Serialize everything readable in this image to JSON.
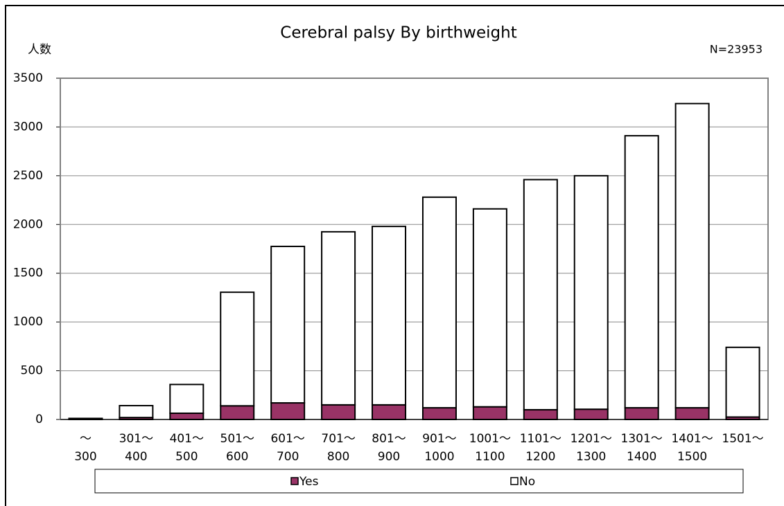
{
  "chart_data": {
    "type": "stacked_bar",
    "title": "Cerebral palsy By birthweight",
    "y_label": "人数",
    "annotation": "N=23953",
    "categories": [
      "～300",
      "301～400",
      "401～500",
      "501～600",
      "601～700",
      "701～800",
      "801～900",
      "901～1000",
      "1001～1100",
      "1101～1200",
      "1201～1300",
      "1301～1400",
      "1401～1500",
      "1501～"
    ],
    "series": [
      {
        "name": "Yes",
        "color": "#993366",
        "values": [
          3,
          20,
          64,
          140,
          170,
          150,
          150,
          120,
          130,
          100,
          105,
          120,
          120,
          25
        ]
      },
      {
        "name": "No",
        "color": "#ffffff",
        "values": [
          8,
          122,
          295,
          1165,
          1605,
          1775,
          1830,
          2160,
          2030,
          2360,
          2395,
          2790,
          3120,
          715
        ]
      }
    ],
    "ylim": [
      0,
      3500
    ],
    "yticks": [
      0,
      500,
      1000,
      1500,
      2000,
      2500,
      3000,
      3500
    ],
    "grid": true,
    "legend": "bottom"
  }
}
